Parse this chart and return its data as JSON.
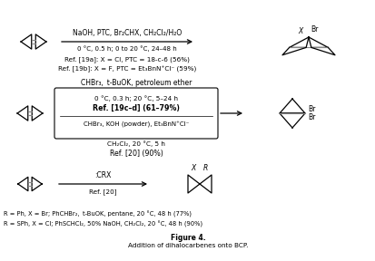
{
  "title": "Figure 4.",
  "subtitle": "Addition of dihalocarbenes onto BCP.",
  "bg_color": "#ffffff",
  "text_color": "#000000",
  "reaction1": {
    "reagents_above": "NaOH, PTC, Br₂CHX, CH₂Cl₂/H₂O",
    "reagents_below": "0 °C, 0.5 h; 0 to 20 °C, 24–48 h",
    "ref1": "Ref. [19a]: X = Cl, PTC = 18-c-6 (56%)",
    "ref2": "Ref. [19b]: X = F, PTC = Et₃BnN⁺Cl⁻ (59%)"
  },
  "reaction2": {
    "reagents_above": "CHBr₃,  t-BuOK, petroleum ether",
    "box_line1": "0 °C, 0.3 h; 20 °C, 5–24 h",
    "box_line2": "Ref. [19c–d] (61–79%)",
    "box_line3": "CHBr₃, KOH (powder), Et₃BnN⁺Cl⁻",
    "ref_below1": "CH₂Cl₂, 20 °C, 5 h",
    "ref_below2": "Ref. [20] (90%)"
  },
  "reaction3": {
    "reagents_above": ":CRX",
    "ref": "Ref. [20]"
  },
  "footer1": "R = Ph, X = Br; PhCHBr₂,  t-BuOK, pentane, 20 °C, 48 h (77%)",
  "footer2": "R = SPh, X = Cl; PhSCHCl₂, 50% NaOH, CH₂Cl₂, 20 °C, 48 h (90%)"
}
